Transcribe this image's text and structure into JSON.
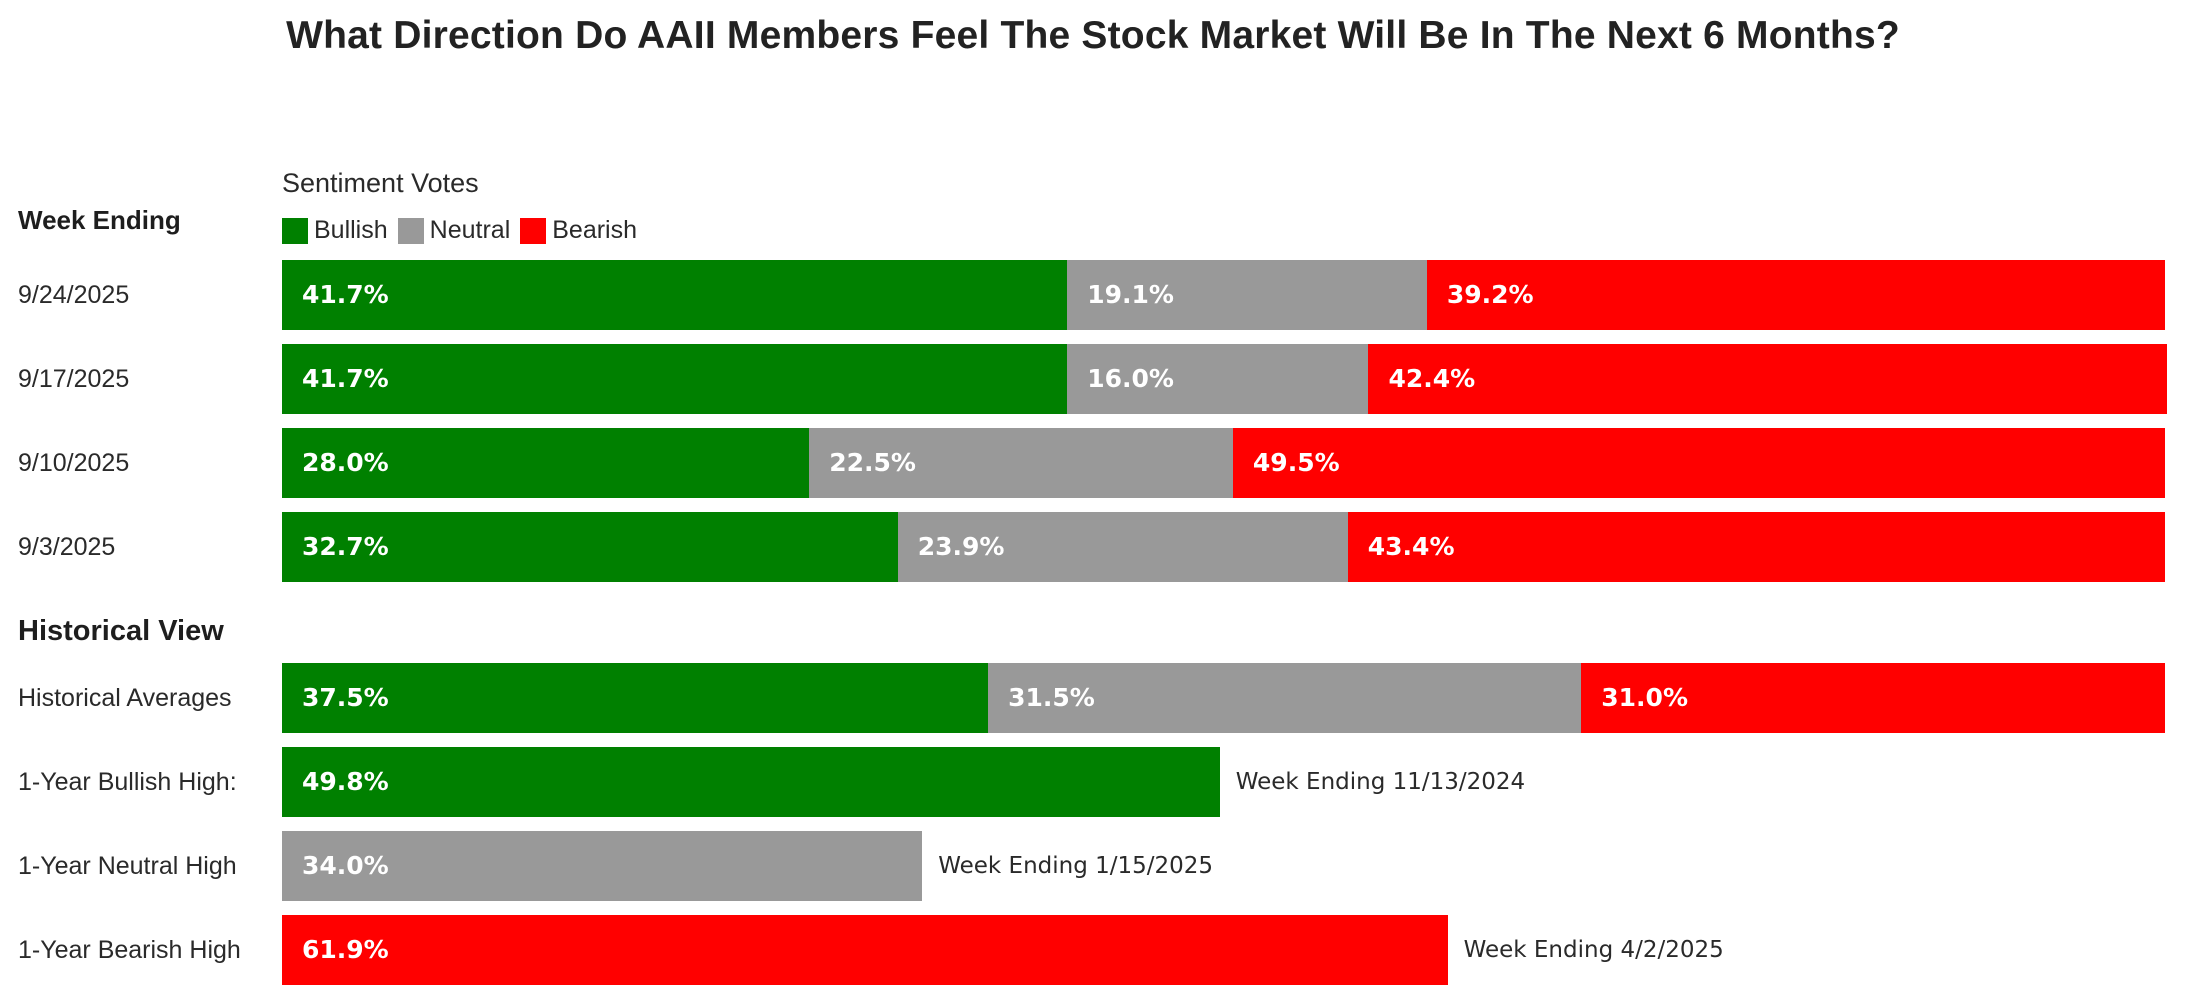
{
  "title": "What Direction Do AAII Members Feel The Stock Market Will Be In The Next 6 Months?",
  "colors": {
    "bullish": "#008000",
    "neutral": "#999999",
    "bearish": "#ff0000"
  },
  "chart_data": {
    "type": "bar",
    "orientation": "horizontal",
    "stacked": true,
    "title": "What Direction Do AAII Members Feel The Stock Market Will Be In The Next 6 Months?",
    "legend_title": "Sentiment Votes",
    "column_header": "Week Ending",
    "legend": [
      {
        "key": "bullish",
        "label": "Bullish"
      },
      {
        "key": "neutral",
        "label": "Neutral"
      },
      {
        "key": "bearish",
        "label": "Bearish"
      }
    ],
    "weekly": [
      {
        "label": "9/24/2025",
        "values": {
          "bullish": 41.7,
          "neutral": 19.1,
          "bearish": 39.2
        },
        "texts": {
          "bullish": "41.7%",
          "neutral": "19.1%",
          "bearish": "39.2%"
        }
      },
      {
        "label": "9/17/2025",
        "values": {
          "bullish": 41.7,
          "neutral": 16.0,
          "bearish": 42.4
        },
        "texts": {
          "bullish": "41.7%",
          "neutral": "16.0%",
          "bearish": "42.4%"
        }
      },
      {
        "label": "9/10/2025",
        "values": {
          "bullish": 28.0,
          "neutral": 22.5,
          "bearish": 49.5
        },
        "texts": {
          "bullish": "28.0%",
          "neutral": "22.5%",
          "bearish": "49.5%"
        }
      },
      {
        "label": "9/3/2025",
        "values": {
          "bullish": 32.7,
          "neutral": 23.9,
          "bearish": 43.4
        },
        "texts": {
          "bullish": "32.7%",
          "neutral": "23.9%",
          "bearish": "43.4%"
        }
      }
    ],
    "historical_header": "Historical View",
    "historical": [
      {
        "label": "Historical Averages",
        "values": {
          "bullish": 37.5,
          "neutral": 31.5,
          "bearish": 31.0
        },
        "texts": {
          "bullish": "37.5%",
          "neutral": "31.5%",
          "bearish": "31.0%"
        }
      }
    ],
    "highs": [
      {
        "label": "1-Year Bullish High:",
        "series": "bullish",
        "value": 49.8,
        "text": "49.8%",
        "note": "Week Ending 11/13/2024"
      },
      {
        "label": "1-Year Neutral High",
        "series": "neutral",
        "value": 34.0,
        "text": "34.0%",
        "note": "Week Ending 1/15/2025"
      },
      {
        "label": "1-Year Bearish High",
        "series": "bearish",
        "value": 61.9,
        "text": "61.9%",
        "note": "Week Ending 4/2/2025"
      }
    ],
    "xlim": [
      0,
      100
    ]
  }
}
